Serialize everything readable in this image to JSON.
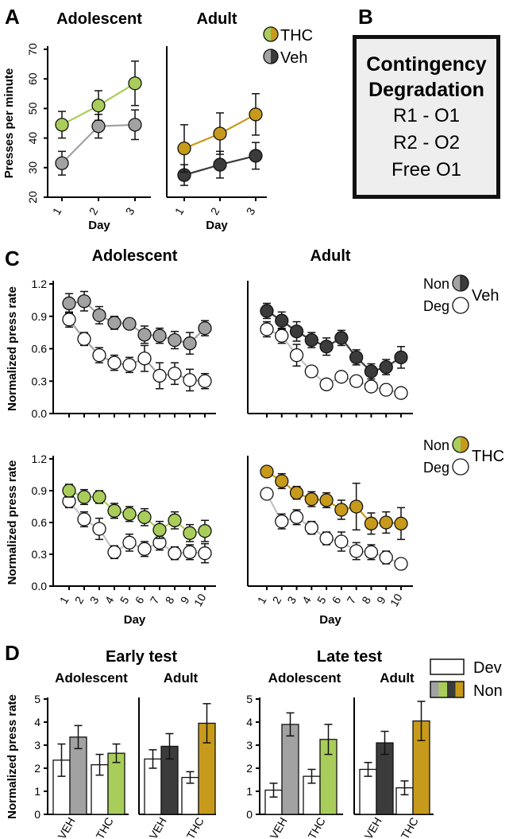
{
  "panel_letters": {
    "a": "A",
    "b": "B",
    "c": "C",
    "d": "D"
  },
  "colors": {
    "thc_adol": "#a9cd5a",
    "thc_adult": "#c79a1b",
    "veh_adol": "#a2a2a2",
    "veh_adult": "#3b3b3b",
    "deg": "#ffffff"
  },
  "box_b": {
    "title1": "Contingency",
    "title2": "Degradation",
    "line1": "R1 - O1",
    "line2": "R2 - O2",
    "line3": "Free O1"
  },
  "chart_data": [
    {
      "id": "A-adolescent",
      "type": "line",
      "title": "Adolescent",
      "xlabel": "Day",
      "ylabel": "Presses per minute",
      "x": [
        1,
        2,
        3
      ],
      "ylim": [
        20,
        70
      ],
      "yticks": [
        20,
        30,
        40,
        50,
        60,
        70
      ],
      "series": [
        {
          "name": "THC",
          "values": [
            44.5,
            51,
            58.5
          ],
          "errors": [
            4.5,
            5,
            7.5
          ]
        },
        {
          "name": "Veh",
          "values": [
            31.5,
            44,
            44.5
          ],
          "errors": [
            4,
            4,
            5
          ]
        }
      ]
    },
    {
      "id": "A-adult",
      "type": "line",
      "title": "Adult",
      "xlabel": "Day",
      "ylabel": "",
      "x": [
        1,
        2,
        3
      ],
      "ylim": [
        20,
        70
      ],
      "legend": [
        {
          "label": "THC"
        },
        {
          "label": "Veh"
        }
      ],
      "series": [
        {
          "name": "THC",
          "values": [
            36.5,
            41.5,
            48
          ],
          "errors": [
            8,
            7,
            7
          ]
        },
        {
          "name": "Veh",
          "values": [
            27.5,
            31,
            34
          ],
          "errors": [
            3.5,
            4.5,
            4.5
          ]
        }
      ]
    },
    {
      "id": "C-adolescent-veh",
      "type": "line",
      "title": "Adolescent",
      "ylabel": "Normalized press rate",
      "x": [
        1,
        2,
        3,
        4,
        5,
        6,
        7,
        8,
        9,
        10
      ],
      "ylim": [
        0,
        1.2
      ],
      "yticks": [
        "0.0",
        "0.3",
        "0.6",
        "0.9",
        "1.2"
      ],
      "series": [
        {
          "name": "Non",
          "values": [
            1.02,
            1.04,
            0.91,
            0.84,
            0.83,
            0.73,
            0.72,
            0.68,
            0.65,
            0.79
          ],
          "errors": [
            0.09,
            0.09,
            0.08,
            0.06,
            0.05,
            0.08,
            0.07,
            0.08,
            0.1,
            0.07
          ]
        },
        {
          "name": "Deg",
          "values": [
            0.87,
            0.69,
            0.54,
            0.47,
            0.45,
            0.51,
            0.35,
            0.37,
            0.31,
            0.3
          ],
          "errors": [
            0.07,
            0.06,
            0.07,
            0.07,
            0.07,
            0.12,
            0.12,
            0.1,
            0.1,
            0.07
          ]
        }
      ]
    },
    {
      "id": "C-adult-veh",
      "type": "line",
      "title": "Adult",
      "x": [
        1,
        2,
        3,
        4,
        5,
        6,
        7,
        8,
        9,
        10
      ],
      "ylim": [
        0,
        1.2
      ],
      "legend": [
        {
          "label": "Non"
        },
        {
          "label": "Deg"
        },
        {
          "label": "Veh"
        }
      ],
      "series": [
        {
          "name": "Non",
          "values": [
            0.95,
            0.86,
            0.76,
            0.68,
            0.62,
            0.7,
            0.52,
            0.39,
            0.43,
            0.52
          ],
          "errors": [
            0.07,
            0.08,
            0.09,
            0.07,
            0.08,
            0.07,
            0.07,
            0.07,
            0.07,
            0.1
          ]
        },
        {
          "name": "Deg",
          "values": [
            0.78,
            0.72,
            0.54,
            0.39,
            0.27,
            0.34,
            0.3,
            0.25,
            0.22,
            0.19
          ],
          "errors": [
            0.07,
            0.07,
            0.1,
            0.04,
            0.04,
            0.04,
            0.04,
            0.04,
            0.04,
            0.04
          ]
        }
      ]
    },
    {
      "id": "C-adolescent-thc",
      "type": "line",
      "xlabel": "Day",
      "ylabel": "Normalized press rate",
      "x": [
        1,
        2,
        3,
        4,
        5,
        6,
        7,
        8,
        9,
        10
      ],
      "ylim": [
        0,
        1.2
      ],
      "yticks": [
        "0.0",
        "0.3",
        "0.6",
        "0.9",
        "1.2"
      ],
      "series": [
        {
          "name": "Non",
          "values": [
            0.9,
            0.84,
            0.84,
            0.71,
            0.68,
            0.65,
            0.53,
            0.62,
            0.5,
            0.52
          ],
          "errors": [
            0.06,
            0.07,
            0.06,
            0.07,
            0.07,
            0.08,
            0.08,
            0.08,
            0.08,
            0.1
          ]
        },
        {
          "name": "Deg",
          "values": [
            0.8,
            0.63,
            0.54,
            0.32,
            0.41,
            0.35,
            0.41,
            0.31,
            0.32,
            0.31
          ],
          "errors": [
            0.06,
            0.07,
            0.1,
            0.06,
            0.08,
            0.07,
            0.07,
            0.06,
            0.07,
            0.09
          ]
        }
      ]
    },
    {
      "id": "C-adult-thc",
      "type": "line",
      "xlabel": "Day",
      "x": [
        1,
        2,
        3,
        4,
        5,
        6,
        7,
        8,
        9,
        10
      ],
      "ylim": [
        0,
        1.2
      ],
      "legend": [
        {
          "label": "Non"
        },
        {
          "label": "Deg"
        },
        {
          "label": "THC"
        }
      ],
      "series": [
        {
          "name": "Non",
          "values": [
            1.08,
            0.99,
            0.88,
            0.82,
            0.81,
            0.72,
            0.75,
            0.59,
            0.6,
            0.59
          ],
          "errors": [
            0.04,
            0.07,
            0.06,
            0.07,
            0.07,
            0.09,
            0.22,
            0.1,
            0.1,
            0.15
          ]
        },
        {
          "name": "Deg",
          "values": [
            0.87,
            0.61,
            0.65,
            0.55,
            0.45,
            0.42,
            0.33,
            0.32,
            0.27,
            0.21
          ],
          "errors": [
            0.04,
            0.07,
            0.07,
            0.06,
            0.06,
            0.09,
            0.08,
            0.07,
            0.06,
            0.04
          ]
        }
      ]
    },
    {
      "id": "D-early-adolescent",
      "type": "bar",
      "group_title": "Early test",
      "title": "Adolescent",
      "ylabel": "Normalized press rate",
      "ylim": [
        0,
        5
      ],
      "yticks": [
        0,
        1,
        2,
        3,
        4,
        5
      ],
      "categories": [
        "VEH",
        "THC"
      ],
      "series": [
        {
          "name": "Dev",
          "values": [
            2.35,
            2.15
          ],
          "errors": [
            0.7,
            0.45
          ]
        },
        {
          "name": "Non",
          "values": [
            3.35,
            2.65
          ],
          "errors": [
            0.5,
            0.4
          ]
        }
      ]
    },
    {
      "id": "D-early-adult",
      "type": "bar",
      "title": "Adult",
      "ylim": [
        0,
        5
      ],
      "categories": [
        "VEH",
        "THC"
      ],
      "series": [
        {
          "name": "Dev",
          "values": [
            2.4,
            1.6
          ],
          "errors": [
            0.4,
            0.25
          ]
        },
        {
          "name": "Non",
          "values": [
            2.95,
            3.95
          ],
          "errors": [
            0.55,
            0.85
          ]
        }
      ]
    },
    {
      "id": "D-late-adolescent",
      "type": "bar",
      "group_title": "Late test",
      "title": "Adolescent",
      "ylim": [
        0,
        5
      ],
      "yticks": [
        0,
        1,
        2,
        3,
        4,
        5
      ],
      "categories": [
        "VEH",
        "THC"
      ],
      "series": [
        {
          "name": "Dev",
          "values": [
            1.05,
            1.65
          ],
          "errors": [
            0.3,
            0.3
          ]
        },
        {
          "name": "Non",
          "values": [
            3.9,
            3.25
          ],
          "errors": [
            0.5,
            0.65
          ]
        }
      ]
    },
    {
      "id": "D-late-adult",
      "type": "bar",
      "title": "Adult",
      "ylim": [
        0,
        5
      ],
      "categories": [
        "VEH",
        "THC"
      ],
      "legend": [
        {
          "label": "Dev"
        },
        {
          "label": "Non"
        }
      ],
      "series": [
        {
          "name": "Dev",
          "values": [
            1.95,
            1.15
          ],
          "errors": [
            0.3,
            0.3
          ]
        },
        {
          "name": "Non",
          "values": [
            3.1,
            4.05
          ],
          "errors": [
            0.5,
            0.85
          ]
        }
      ]
    }
  ]
}
